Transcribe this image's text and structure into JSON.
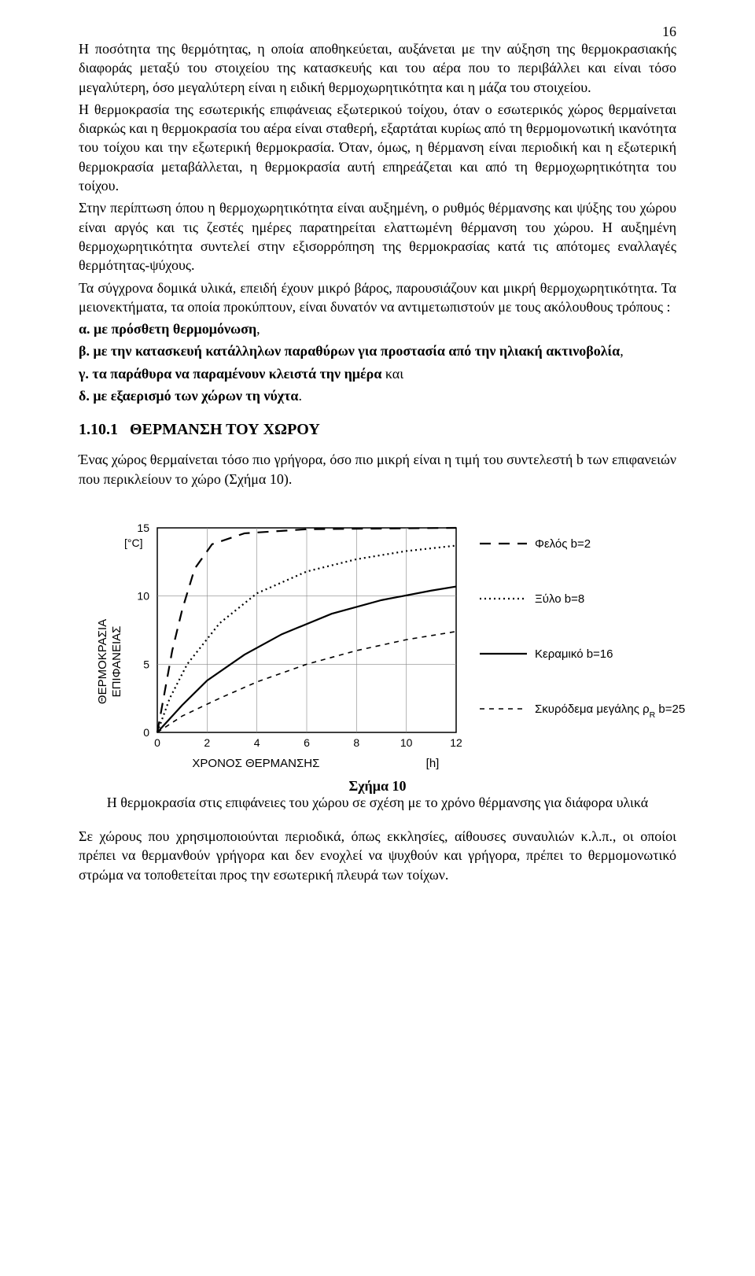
{
  "page_number": "16",
  "paragraphs": {
    "p1": "Η ποσότητα της θερμότητας, η οποία αποθηκεύεται, αυξάνεται με την αύξηση της θερμοκρασιακής διαφοράς μεταξύ του στοιχείου της κατασκευής και του αέρα που το περιβάλλει και είναι τόσο μεγαλύτερη, όσο μεγαλύτερη είναι η ειδική θερμοχωρητικότητα και η μάζα του στοιχείου.",
    "p2": "Η θερμοκρασία της εσωτερικής επιφάνειας εξωτερικού τοίχου, όταν ο εσωτερικός χώρος θερμαίνεται διαρκώς και η θερμοκρασία του αέρα είναι σταθερή, εξαρτάται κυρίως από τη θερμομονωτική ικανότητα του τοίχου και την εξωτερική θερμοκρασία. Όταν, όμως, η θέρμανση είναι περιοδική και η εξωτερική θερμοκρασία μεταβάλλεται, η θερμοκρασία αυτή επηρεάζεται και από τη θερμοχωρητικότητα του τοίχου.",
    "p3": "Στην περίπτωση όπου η θερμοχωρητικότητα είναι αυξημένη, ο ρυθμός θέρμανσης και ψύξης του χώρου είναι αργός και τις ζεστές ημέρες παρατηρείται ελαττωμένη θέρμανση του χώρου. Η αυξημένη θερμοχωρητικότητα συντελεί στην εξισορρόπηση της θερμοκρασίας κατά τις απότομες εναλλαγές θερμότητας-ψύχους.",
    "p4": "Τα σύγχρονα δομικά υλικά, επειδή έχουν μικρό βάρος, παρουσιάζουν και μικρή θερμοχωρητικότητα. Τα μειονεκτήματα, τα οποία προκύπτουν, είναι δυνατόν να αντιμετωπιστούν  με τους ακόλουθους τρόπους :",
    "a_label": "α. με πρόσθετη θερμομόνωση",
    "b_label": "β. με  την  κατασκευή  κατάλληλων  παραθύρων  για  προστασία  από  την ηλιακή ακτινοβολία",
    "c_prefix": "γ.",
    "c_bold": " τα παράθυρα να παραμένουν κλειστά την ημέρα",
    "c_suffix": " και",
    "d_prefix": "δ.",
    "d_bold": " με εξαερισμό των χώρων τη νύχτα",
    "d_suffix": "."
  },
  "section": {
    "number": "1.10.1",
    "title": "ΘΕΡΜΑΝΣΗ ΤΟΥ ΧΩΡΟΥ"
  },
  "section_para": "Ένας χώρος θερμαίνεται τόσο πιο γρήγορα, όσο πιο μικρή είναι η τιμή του συντελεστή b των επιφανειών που περικλείουν το χώρο (Σχήμα 10).",
  "figure": {
    "y_label": "ΘΕΡΜΟΚΡΑΣΙΑ\nΕΠΙΦΑΝΕΙΑΣ",
    "y_unit": "[°C]",
    "x_label": "ΧΡΟΝΟΣ ΘΕΡΜΑΝΣΗΣ",
    "x_unit": "[h]",
    "x_ticks": [
      0,
      2,
      4,
      6,
      8,
      10,
      12
    ],
    "y_ticks": [
      0,
      5,
      10,
      15
    ],
    "x_range": [
      0,
      12
    ],
    "y_range": [
      0,
      15
    ],
    "background": "#ffffff",
    "grid_color": "#888888",
    "axis_color": "#000000",
    "axis_width": 1.5,
    "tick_fontsize": 14,
    "label_fontsize": 15,
    "legend_fontsize": 15,
    "series": [
      {
        "name": "Φελός  b=2",
        "stroke": "#000000",
        "width": 2.2,
        "dash": "14,10",
        "points": [
          [
            0,
            0
          ],
          [
            0.3,
            3
          ],
          [
            0.6,
            6
          ],
          [
            1.0,
            9
          ],
          [
            1.5,
            12
          ],
          [
            2.2,
            13.8
          ],
          [
            3.5,
            14.6
          ],
          [
            6,
            14.9
          ],
          [
            12,
            15
          ]
        ]
      },
      {
        "name": "Ξύλο  b=8",
        "stroke": "#000000",
        "width": 2.2,
        "dash": "2,4",
        "points": [
          [
            0,
            0
          ],
          [
            0.5,
            2.5
          ],
          [
            1.2,
            5
          ],
          [
            2.5,
            8
          ],
          [
            4,
            10.2
          ],
          [
            6,
            11.8
          ],
          [
            8,
            12.7
          ],
          [
            10,
            13.3
          ],
          [
            12,
            13.7
          ]
        ]
      },
      {
        "name": "Κεραμικό b=16",
        "stroke": "#000000",
        "width": 2.2,
        "dash": "",
        "points": [
          [
            0,
            0
          ],
          [
            1,
            2
          ],
          [
            2,
            3.8
          ],
          [
            3.5,
            5.7
          ],
          [
            5,
            7.2
          ],
          [
            7,
            8.7
          ],
          [
            9,
            9.7
          ],
          [
            11,
            10.4
          ],
          [
            12,
            10.7
          ]
        ]
      },
      {
        "name_prefix": "Σκυρόδεμα μεγάλης ρ",
        "name_sub": "R",
        "name_suffix": "   b=25",
        "stroke": "#000000",
        "width": 1.6,
        "dash": "6,6",
        "points": [
          [
            0,
            0
          ],
          [
            1,
            1.2
          ],
          [
            2.5,
            2.5
          ],
          [
            4,
            3.7
          ],
          [
            6,
            5.0
          ],
          [
            8,
            6.0
          ],
          [
            10,
            6.8
          ],
          [
            12,
            7.4
          ]
        ]
      }
    ],
    "caption_bold": "Σχήμα 10",
    "caption_rest": "Η θερμοκρασία στις επιφάνειες του χώρου σε σχέση με το χρόνο θέρμανσης για διάφορα υλικά"
  },
  "closing_para": "Σε χώρους που χρησιμοποιούνται περιοδικά, όπως εκκλησίες, αίθουσες συναυλιών κ.λ.π., οι οποίοι πρέπει να θερμανθούν γρήγορα και δεν ενοχλεί να ψυχθούν και γρήγορα, πρέπει το θερμομονωτικό στρώμα να τοποθετείται προς την εσωτερική πλευρά των τοίχων.",
  "comma": ","
}
